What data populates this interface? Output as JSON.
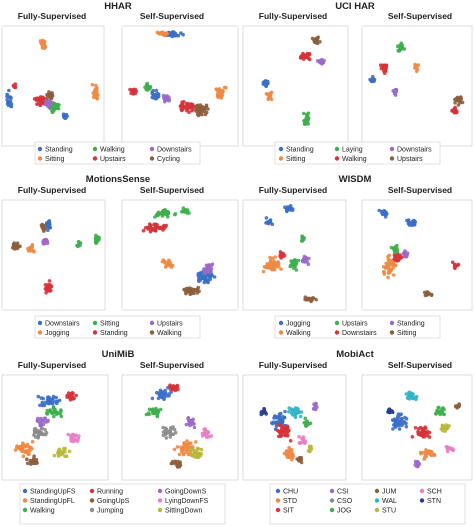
{
  "palette": {
    "blue": "#3b6fc6",
    "orange": "#ee8a45",
    "green": "#3fae4d",
    "red": "#d6333a",
    "purple": "#9b6ac9",
    "brown": "#8b5e3c",
    "pink": "#e87fc7",
    "gray": "#8c8c8c",
    "olive": "#b7b83a",
    "cyan": "#33b5c9",
    "navy": "#2a3d8f"
  },
  "chart_data": [
    {
      "type": "scatter",
      "title": "HHAR",
      "panels": [
        {
          "title": "Fully-Supervised"
        },
        {
          "title": "Self-Supervised"
        }
      ],
      "classes": [
        {
          "name": "Standing",
          "color": "#3b6fc6"
        },
        {
          "name": "Walking",
          "color": "#3fae4d"
        },
        {
          "name": "Downstairs",
          "color": "#9b6ac9"
        },
        {
          "name": "Sitting",
          "color": "#ee8a45"
        },
        {
          "name": "Upstairs",
          "color": "#d6333a"
        },
        {
          "name": "Cycling",
          "color": "#8b5e3c"
        }
      ]
    },
    {
      "type": "scatter",
      "title": "UCI HAR",
      "panels": [
        {
          "title": "Fully-Supervised"
        },
        {
          "title": "Self-Supervised"
        }
      ],
      "classes": [
        {
          "name": "Standing",
          "color": "#3b6fc6"
        },
        {
          "name": "Laying",
          "color": "#3fae4d"
        },
        {
          "name": "Downstairs",
          "color": "#9b6ac9"
        },
        {
          "name": "Sitting",
          "color": "#ee8a45"
        },
        {
          "name": "Walking",
          "color": "#d6333a"
        },
        {
          "name": "Upstairs",
          "color": "#8b5e3c"
        }
      ]
    },
    {
      "type": "scatter",
      "title": "MotionsSense",
      "panels": [
        {
          "title": "Fully-Supervised"
        },
        {
          "title": "Self-Supervised"
        }
      ],
      "classes": [
        {
          "name": "Downstairs",
          "color": "#3b6fc6"
        },
        {
          "name": "Sitting",
          "color": "#3fae4d"
        },
        {
          "name": "Upstairs",
          "color": "#9b6ac9"
        },
        {
          "name": "Jogging",
          "color": "#ee8a45"
        },
        {
          "name": "Standing",
          "color": "#d6333a"
        },
        {
          "name": "Walking",
          "color": "#8b5e3c"
        }
      ]
    },
    {
      "type": "scatter",
      "title": "WISDM",
      "panels": [
        {
          "title": "Fully-Supervised"
        },
        {
          "title": "Self-Supervised"
        }
      ],
      "classes": [
        {
          "name": "Jogging",
          "color": "#3b6fc6"
        },
        {
          "name": "Upstairs",
          "color": "#3fae4d"
        },
        {
          "name": "Standing",
          "color": "#9b6ac9"
        },
        {
          "name": "Walking",
          "color": "#ee8a45"
        },
        {
          "name": "Downstairs",
          "color": "#d6333a"
        },
        {
          "name": "Sitting",
          "color": "#8b5e3c"
        }
      ]
    },
    {
      "type": "scatter",
      "title": "UniMiB",
      "panels": [
        {
          "title": "Fully-Supervised"
        },
        {
          "title": "Self-Supervised"
        }
      ],
      "classes": [
        {
          "name": "StandingUpFS",
          "color": "#3b6fc6"
        },
        {
          "name": "Running",
          "color": "#d6333a"
        },
        {
          "name": "GoingDownS",
          "color": "#9b6ac9"
        },
        {
          "name": "StandingUpFL",
          "color": "#ee8a45"
        },
        {
          "name": "GoingUpS",
          "color": "#8b5e3c"
        },
        {
          "name": "LyingDownFS",
          "color": "#e87fc7"
        },
        {
          "name": "Walking",
          "color": "#3fae4d"
        },
        {
          "name": "Jumping",
          "color": "#8c8c8c"
        },
        {
          "name": "SittingDown",
          "color": "#b7b83a"
        }
      ]
    },
    {
      "type": "scatter",
      "title": "MobiAct",
      "panels": [
        {
          "title": "Fully-Supervised"
        },
        {
          "title": "Self-Supervised"
        }
      ],
      "classes": [
        {
          "name": "CHU",
          "color": "#3b6fc6"
        },
        {
          "name": "CSI",
          "color": "#9b6ac9"
        },
        {
          "name": "JUM",
          "color": "#8b5e3c"
        },
        {
          "name": "SCH",
          "color": "#e87fc7"
        },
        {
          "name": "STD",
          "color": "#ee8a45"
        },
        {
          "name": "CSO",
          "color": "#8c8c8c"
        },
        {
          "name": "WAL",
          "color": "#33b5c9"
        },
        {
          "name": "STN",
          "color": "#2a3d8f"
        },
        {
          "name": "SIT",
          "color": "#d6333a"
        },
        {
          "name": "JOG",
          "color": "#3fae4d"
        },
        {
          "name": "STU",
          "color": "#b7b83a"
        }
      ]
    }
  ]
}
